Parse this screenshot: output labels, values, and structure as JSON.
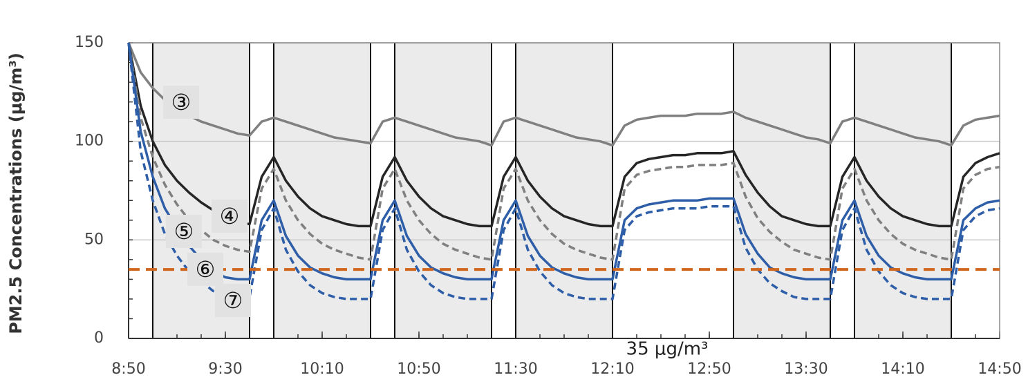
{
  "chart_data": {
    "type": "line",
    "y_label": "PM2.5 Concentrations (μg/m³)",
    "x": [
      530,
      535,
      540,
      545,
      550,
      555,
      560,
      565,
      570,
      575,
      580,
      585,
      590,
      595,
      600,
      605,
      610,
      615,
      620,
      625,
      630,
      635,
      640,
      645,
      650,
      655,
      660,
      665,
      670,
      675,
      680,
      685,
      690,
      695,
      700,
      705,
      710,
      715,
      720,
      725,
      730,
      735,
      740,
      745,
      750,
      755,
      760,
      765,
      770,
      775,
      780,
      785,
      790,
      795,
      800,
      805,
      810,
      815,
      820,
      825,
      830,
      835,
      840,
      845,
      850,
      855,
      860,
      865,
      870,
      875,
      880,
      885,
      890
    ],
    "xlim": [
      530,
      890
    ],
    "xticks": [
      {
        "value": 530,
        "label": "8:50"
      },
      {
        "value": 570,
        "label": "9:30"
      },
      {
        "value": 610,
        "label": "10:10"
      },
      {
        "value": 650,
        "label": "10:50"
      },
      {
        "value": 690,
        "label": "11:30"
      },
      {
        "value": 730,
        "label": "12:10"
      },
      {
        "value": 770,
        "label": "12:50"
      },
      {
        "value": 810,
        "label": "13:30"
      },
      {
        "value": 850,
        "label": "14:10"
      },
      {
        "value": 890,
        "label": "14:50"
      }
    ],
    "xminorticks": [
      530,
      540,
      550,
      560,
      570,
      580,
      590,
      600,
      610,
      620,
      630,
      640,
      650,
      660,
      670,
      680,
      690,
      700,
      710,
      720,
      730,
      740,
      750,
      760,
      770,
      780,
      790,
      800,
      810,
      820,
      830,
      840,
      850,
      860,
      870,
      880,
      890
    ],
    "ylim": [
      0,
      150
    ],
    "yticks": [
      0,
      50,
      100,
      150
    ],
    "yminorticks": [
      0,
      10,
      20,
      30,
      40,
      50,
      60,
      70,
      80,
      90,
      100,
      110,
      120,
      130,
      140,
      150
    ],
    "grid": true,
    "bands": [
      [
        540,
        580
      ],
      [
        590,
        630
      ],
      [
        640,
        680
      ],
      [
        690,
        730
      ],
      [
        780,
        820
      ],
      [
        830,
        870
      ]
    ],
    "band_color": "#ebebeb",
    "hline": {
      "value": 35,
      "color": "#d0661c",
      "label": "35 μg/m³"
    },
    "series": [
      {
        "name": "③",
        "color": "#808080",
        "dash": false,
        "values": [
          150,
          135,
          127,
          121,
          117,
          113,
          110,
          108,
          106,
          104,
          103,
          110,
          112,
          110,
          108,
          106,
          104,
          102,
          101,
          100,
          99,
          110,
          112,
          110,
          108,
          106,
          104,
          102,
          101,
          100,
          98,
          110,
          112,
          110,
          108,
          106,
          104,
          102,
          101,
          100,
          98,
          108,
          111,
          112,
          113,
          113,
          113,
          114,
          114,
          114,
          115,
          112,
          110,
          108,
          106,
          104,
          102,
          101,
          99,
          110,
          112,
          110,
          108,
          106,
          104,
          102,
          101,
          100,
          98,
          108,
          111,
          112,
          113
        ]
      },
      {
        "name": "④",
        "color": "#262626",
        "dash": false,
        "values": [
          150,
          118,
          100,
          88,
          80,
          74,
          69,
          65,
          61,
          59,
          58,
          82,
          92,
          80,
          72,
          66,
          62,
          60,
          58,
          57,
          57,
          82,
          92,
          80,
          72,
          66,
          62,
          60,
          58,
          57,
          57,
          82,
          92,
          80,
          72,
          66,
          62,
          60,
          58,
          57,
          57,
          82,
          89,
          91,
          92,
          93,
          93,
          94,
          94,
          94,
          95,
          83,
          74,
          67,
          62,
          60,
          58,
          57,
          57,
          82,
          92,
          80,
          72,
          66,
          62,
          60,
          58,
          57,
          57,
          82,
          89,
          92,
          94
        ]
      },
      {
        "name": "⑤",
        "color": "#808080",
        "dash": true,
        "values": [
          150,
          112,
          92,
          78,
          68,
          60,
          55,
          50,
          47,
          45,
          44,
          76,
          86,
          70,
          60,
          53,
          48,
          45,
          43,
          41,
          40,
          76,
          86,
          70,
          60,
          53,
          48,
          45,
          43,
          41,
          40,
          76,
          86,
          70,
          60,
          53,
          48,
          45,
          43,
          41,
          40,
          76,
          83,
          85,
          86,
          87,
          87,
          88,
          88,
          88,
          89,
          72,
          61,
          54,
          49,
          45,
          43,
          41,
          40,
          76,
          86,
          70,
          60,
          53,
          48,
          45,
          43,
          41,
          40,
          76,
          83,
          86,
          87
        ]
      },
      {
        "name": "⑥",
        "color": "#2f5ea8",
        "dash": false,
        "values": [
          150,
          105,
          82,
          66,
          56,
          47,
          40,
          34,
          31,
          30,
          30,
          60,
          70,
          52,
          42,
          36,
          33,
          31,
          30,
          30,
          30,
          60,
          70,
          52,
          42,
          36,
          33,
          31,
          30,
          30,
          30,
          60,
          70,
          52,
          42,
          36,
          33,
          31,
          30,
          30,
          30,
          60,
          66,
          68,
          69,
          70,
          70,
          70,
          71,
          71,
          71,
          53,
          43,
          36,
          33,
          31,
          30,
          30,
          30,
          60,
          70,
          52,
          42,
          36,
          33,
          31,
          30,
          30,
          30,
          60,
          66,
          69,
          70
        ]
      },
      {
        "name": "⑦",
        "color": "#2f5ea8",
        "dash": true,
        "values": [
          150,
          95,
          70,
          53,
          42,
          34,
          29,
          24,
          22,
          21,
          21,
          55,
          66,
          45,
          34,
          27,
          23,
          21,
          20,
          20,
          20,
          55,
          66,
          45,
          34,
          27,
          23,
          21,
          20,
          20,
          20,
          55,
          66,
          45,
          34,
          27,
          23,
          21,
          20,
          20,
          20,
          55,
          62,
          64,
          65,
          66,
          66,
          66,
          67,
          67,
          67,
          46,
          35,
          28,
          24,
          21,
          20,
          20,
          20,
          55,
          66,
          45,
          34,
          27,
          23,
          21,
          20,
          20,
          20,
          55,
          62,
          65,
          66
        ]
      }
    ]
  }
}
